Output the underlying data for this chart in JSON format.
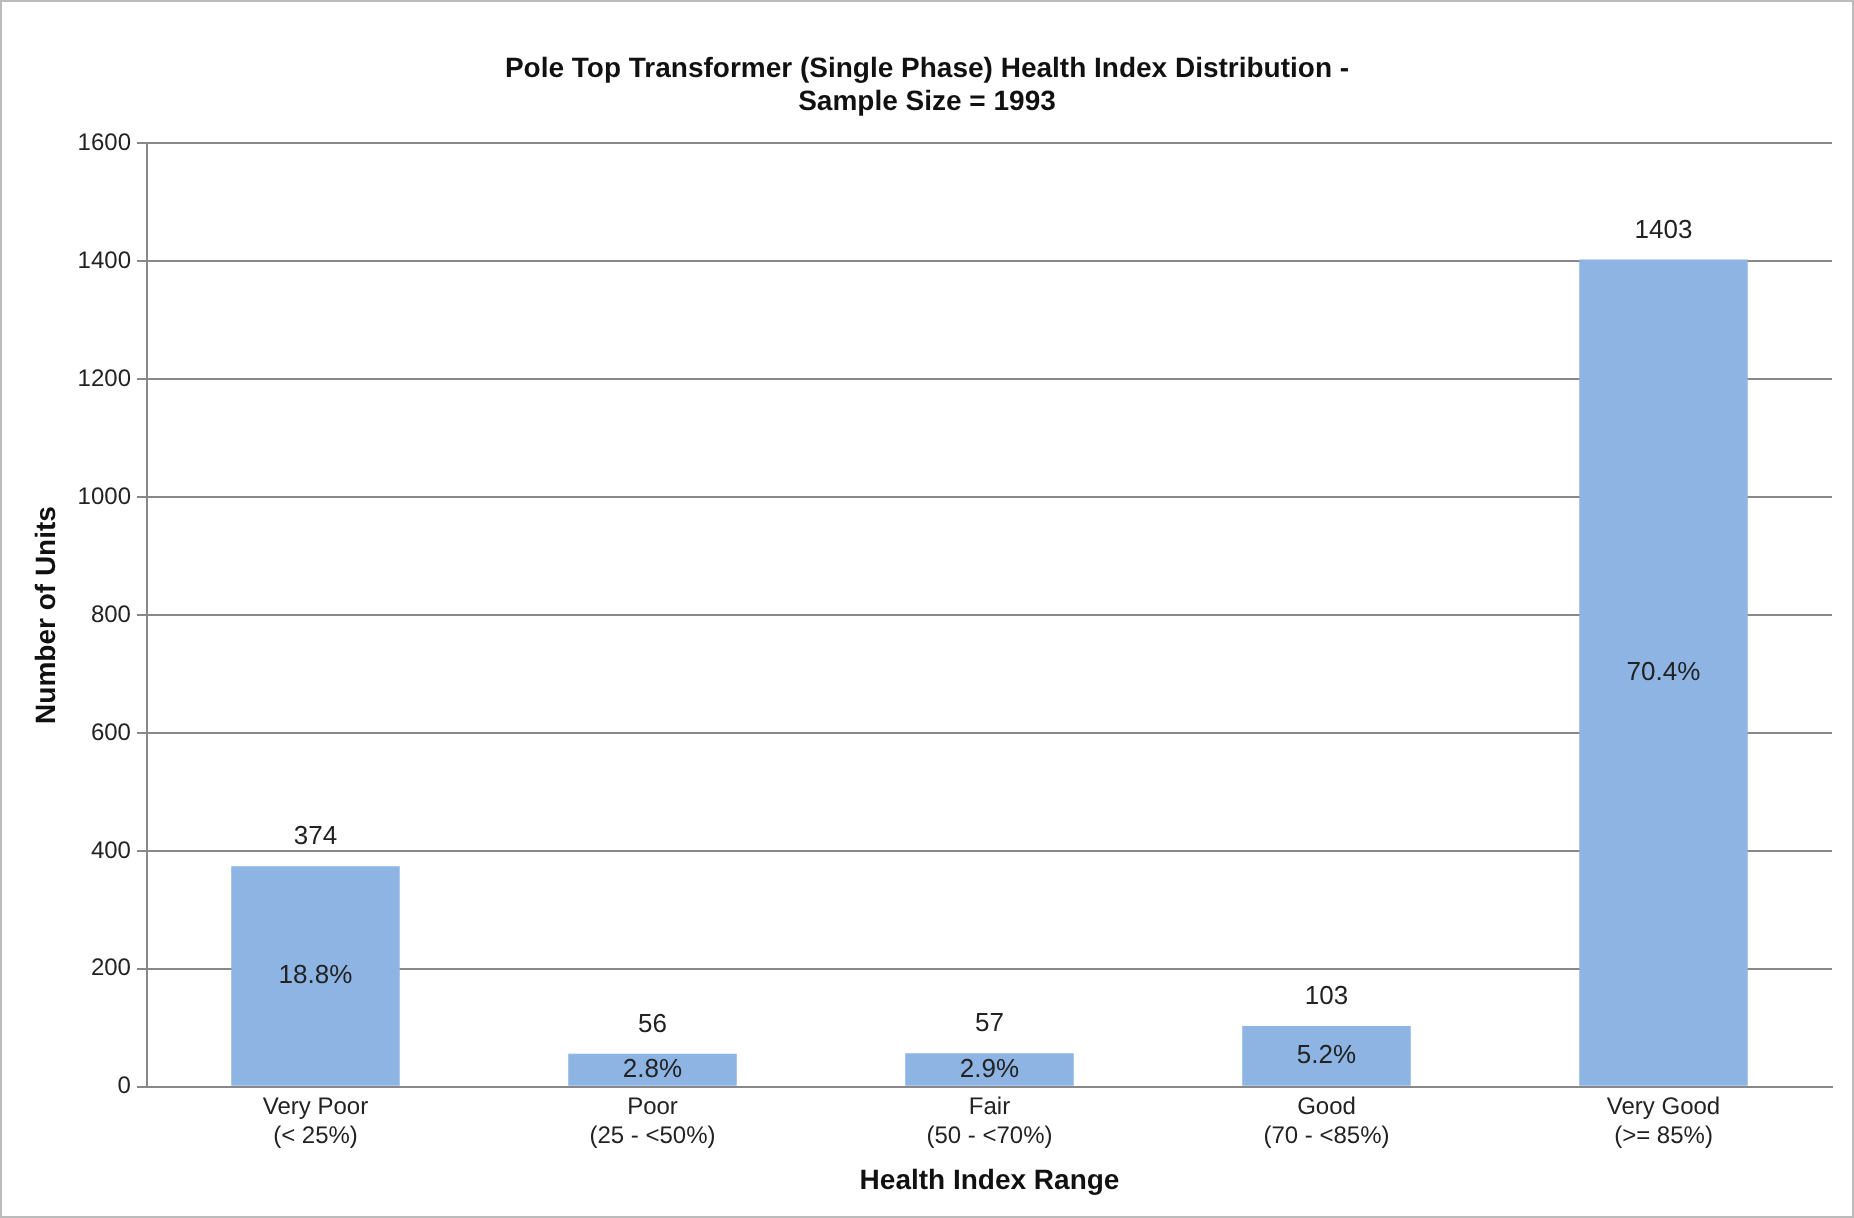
{
  "chart_data": {
    "type": "bar",
    "title": "Pole Top Transformer (Single Phase) Health Index Distribution -\nSample Size = 1993",
    "xlabel": "Health Index Range",
    "ylabel": "Number of Units",
    "categories": [
      "Very Poor\n(< 25%)",
      "Poor\n(25 - <50%)",
      "Fair\n(50 - <70%)",
      "Good\n(70 - <85%)",
      "Very Good\n(>= 85%)"
    ],
    "values": [
      374,
      56,
      57,
      103,
      1403
    ],
    "color": "#8db4e2",
    "data_labels": true,
    "annotations": [
      "18.8%",
      "2.8%",
      "2.9%",
      "5.2%",
      "70.4%"
    ],
    "ylim": [
      0,
      1600
    ],
    "yticks": [
      0,
      200,
      400,
      600,
      800,
      1000,
      1200,
      1400,
      1600
    ],
    "grid": "y"
  }
}
